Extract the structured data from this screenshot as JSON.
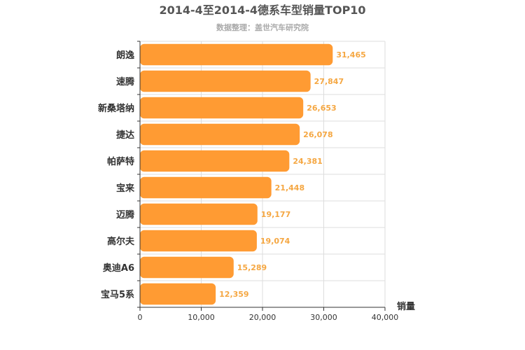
{
  "chart_data": {
    "type": "bar",
    "orientation": "horizontal",
    "title": "2014-4至2014-4德系车型销量TOP10",
    "subtitle": "数据整理：盖世汽车研究院",
    "categories": [
      "朗逸",
      "速腾",
      "新桑塔纳",
      "捷达",
      "帕萨特",
      "宝来",
      "迈腾",
      "高尔夫",
      "奥迪A6",
      "宝马5系"
    ],
    "values": [
      31465,
      27847,
      26653,
      26078,
      24381,
      21448,
      19177,
      19074,
      15289,
      12359
    ],
    "value_labels": [
      "31,465",
      "27,847",
      "26,653",
      "26,078",
      "24,381",
      "21,448",
      "19,177",
      "19,074",
      "15,289",
      "12,359"
    ],
    "xlabel": "销量",
    "xlim": [
      0,
      40000
    ],
    "x_ticks": [
      0,
      10000,
      20000,
      30000,
      40000
    ],
    "x_tick_labels": [
      "0",
      "10,000",
      "20,000",
      "30,000",
      "40,000"
    ],
    "grid": true,
    "bar_color": "#ff9b33",
    "label_color": "#f5a742"
  }
}
